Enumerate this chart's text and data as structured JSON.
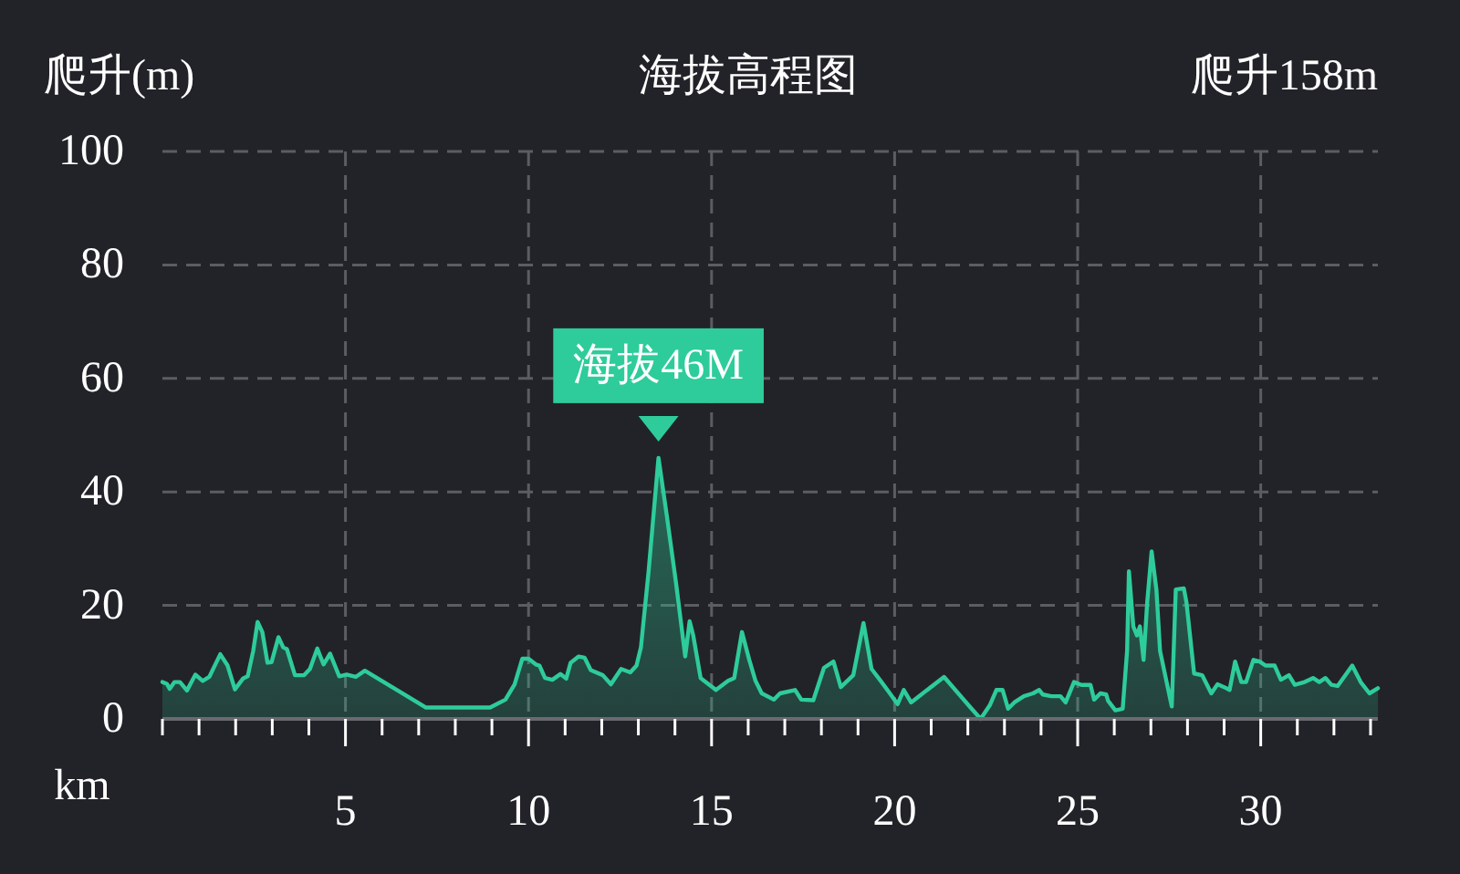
{
  "chart_data": {
    "type": "area",
    "title": "海拔高程图",
    "ylabel": "爬升(m)",
    "xlabel": "km",
    "annotations": [
      "爬升158m",
      {
        "text": "海拔46M",
        "x": 13.55,
        "y": 46
      }
    ],
    "x": [
      0,
      0.12,
      0.2,
      0.33,
      0.48,
      0.67,
      0.9,
      1.1,
      1.28,
      1.58,
      1.78,
      1.98,
      2.2,
      2.33,
      2.48,
      2.6,
      2.73,
      2.87,
      2.98,
      3.17,
      3.3,
      3.4,
      3.62,
      3.87,
      4.03,
      4.23,
      4.4,
      4.58,
      4.83,
      5.03,
      5.28,
      5.53,
      7.2,
      8.95,
      9.37,
      9.62,
      9.83,
      10.0,
      10.2,
      10.3,
      10.45,
      10.65,
      10.87,
      11.03,
      11.15,
      11.37,
      11.53,
      11.7,
      12.03,
      12.25,
      12.53,
      12.78,
      12.95,
      13.07,
      13.28,
      13.55,
      13.78,
      14.03,
      14.28,
      14.4,
      14.5,
      14.7,
      15.12,
      15.45,
      15.62,
      15.83,
      16.03,
      16.2,
      16.37,
      16.7,
      16.87,
      17.28,
      17.45,
      17.78,
      18.07,
      18.33,
      18.53,
      18.87,
      19.15,
      19.37,
      19.62,
      19.87,
      20.08,
      20.25,
      20.45,
      21.35,
      22.1,
      22.35,
      22.6,
      22.78,
      22.95,
      23.1,
      23.27,
      23.53,
      23.78,
      23.95,
      24.05,
      24.28,
      24.53,
      24.67,
      24.9,
      25.1,
      25.35,
      25.45,
      25.62,
      25.78,
      25.83,
      26.03,
      26.23,
      26.35,
      26.4,
      26.52,
      26.62,
      26.7,
      26.8,
      26.9,
      27.02,
      27.15,
      27.25,
      27.57,
      27.68,
      27.9,
      27.97,
      28.18,
      28.4,
      28.65,
      28.82,
      29.0,
      29.15,
      29.3,
      29.47,
      29.6,
      29.8,
      29.97,
      30.13,
      30.38,
      30.55,
      30.77,
      30.93,
      31.2,
      31.43,
      31.6,
      31.77,
      31.93,
      32.1,
      32.5,
      32.73,
      32.97,
      33.2
    ],
    "series": [
      {
        "color": "#2ecc9a",
        "values": [
          6.5,
          6.2,
          5.3,
          6.5,
          6.5,
          5.0,
          7.8,
          6.7,
          7.4,
          11.4,
          9.4,
          5.2,
          7.1,
          7.5,
          12.0,
          17.1,
          15.3,
          9.9,
          10.0,
          14.4,
          12.6,
          12.3,
          7.7,
          7.7,
          8.8,
          12.4,
          9.6,
          11.5,
          7.5,
          7.8,
          7.4,
          8.5,
          2.0,
          2.0,
          3.4,
          6.1,
          10.6,
          10.6,
          9.6,
          9.4,
          7.2,
          6.9,
          7.9,
          7.1,
          9.9,
          11.0,
          10.8,
          8.6,
          7.7,
          6.1,
          8.8,
          8.2,
          9.4,
          12.6,
          26,
          46,
          35.7,
          23.9,
          11.0,
          17.2,
          14.7,
          7.2,
          5.1,
          6.7,
          7.2,
          15.3,
          10.4,
          6.7,
          4.5,
          3.4,
          4.5,
          5.1,
          3.4,
          3.3,
          9.0,
          10.1,
          5.6,
          7.7,
          16.9,
          8.8,
          6.7,
          4.5,
          2.6,
          5.1,
          2.9,
          7.4,
          1.8,
          0,
          2.4,
          5.1,
          5.1,
          1.8,
          2.9,
          4.0,
          4.5,
          5.1,
          4.3,
          4.0,
          4.0,
          2.9,
          6.5,
          6.0,
          6.0,
          3.4,
          4.5,
          4.3,
          3.2,
          1.5,
          1.8,
          12.0,
          26,
          16.3,
          14.7,
          16.3,
          10.4,
          20.6,
          29.5,
          22.8,
          12.0,
          2.2,
          22.8,
          23.0,
          20.6,
          8.0,
          7.7,
          4.5,
          6.1,
          5.6,
          5.1,
          10.1,
          6.5,
          6.5,
          10.4,
          10.1,
          9.4,
          9.4,
          6.9,
          7.7,
          6.0,
          6.5,
          7.2,
          6.5,
          7.2,
          6.0,
          5.8,
          9.4,
          6.5,
          4.5,
          5.4
        ]
      }
    ],
    "xlim": [
      0,
      33.2
    ],
    "ylim": [
      0,
      100
    ],
    "xticks": [
      {
        "value": 0,
        "label": null
      },
      {
        "value": 1,
        "label": null
      },
      {
        "value": 2,
        "label": null
      },
      {
        "value": 3,
        "label": null
      },
      {
        "value": 4,
        "label": null
      },
      5,
      {
        "value": 6,
        "label": null
      },
      {
        "value": 7,
        "label": null
      },
      {
        "value": 8,
        "label": null
      },
      {
        "value": 9,
        "label": null
      },
      10,
      {
        "value": 11,
        "label": null
      },
      {
        "value": 12,
        "label": null
      },
      {
        "value": 13,
        "label": null
      },
      {
        "value": 14,
        "label": null
      },
      15,
      {
        "value": 16,
        "label": null
      },
      {
        "value": 17,
        "label": null
      },
      {
        "value": 18,
        "label": null
      },
      {
        "value": 19,
        "label": null
      },
      20,
      {
        "value": 21,
        "label": null
      },
      {
        "value": 22,
        "label": null
      },
      {
        "value": 23,
        "label": null
      },
      {
        "value": 24,
        "label": null
      },
      25,
      {
        "value": 26,
        "label": null
      },
      {
        "value": 27,
        "label": null
      },
      {
        "value": 28,
        "label": null
      },
      {
        "value": 29,
        "label": null
      },
      30,
      {
        "value": 31,
        "label": null
      },
      {
        "value": 32,
        "label": null
      },
      {
        "value": 33,
        "label": null
      }
    ],
    "yticks": [
      0,
      20,
      40,
      60,
      80,
      100
    ],
    "grid": true
  }
}
